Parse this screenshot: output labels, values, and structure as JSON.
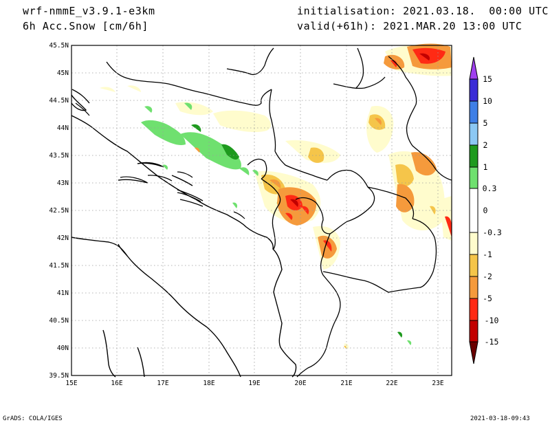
{
  "header": {
    "model": "wrf-nmmE_v3.9.1-e3km",
    "field": "6h Acc.Snow [cm/6h]",
    "init": "initialisation: 2021.03.18.  00:00 UTC",
    "valid": "valid(+61h): 2021.MAR.20 13:00 UTC"
  },
  "footer": {
    "left": "GrADS: COLA/IGES",
    "right": "2021-03-18-09:43"
  },
  "map": {
    "lon_labels": [
      "15E",
      "16E",
      "17E",
      "18E",
      "19E",
      "20E",
      "21E",
      "22E",
      "23E"
    ],
    "lat_labels": [
      "45.5N",
      "45N",
      "44.5N",
      "44N",
      "43.5N",
      "43N",
      "42.5N",
      "42N",
      "41.5N",
      "41N",
      "40.5N",
      "40N",
      "39.5N"
    ]
  },
  "colorbar": {
    "labels": [
      "15",
      "10",
      "5",
      "2",
      "1",
      "0.3",
      "0",
      "-0.3",
      "-1",
      "-2",
      "-5",
      "-10",
      "-15"
    ],
    "colors": [
      "#3a2bd6",
      "#3f7fe6",
      "#8cc8f4",
      "#1e9a1e",
      "#6fe06f",
      "#ffffff",
      "#fffccd",
      "#f5c54a",
      "#f59a3c",
      "#ff2a14",
      "#c20000",
      "#7a0000"
    ],
    "top_color": "#a040f0",
    "bottom_color": "#6a0000"
  }
}
